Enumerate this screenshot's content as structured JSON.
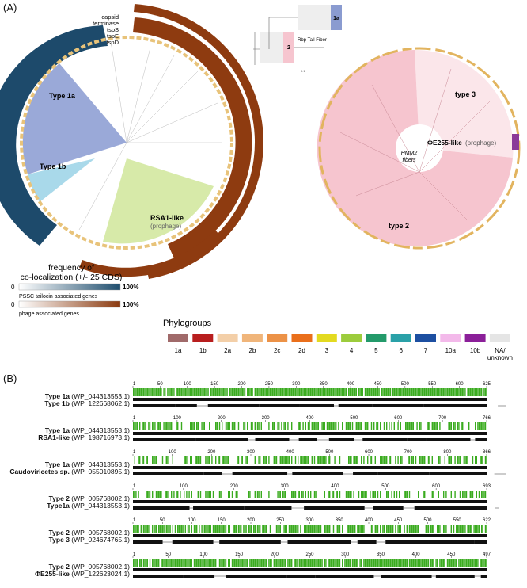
{
  "panel_a": {
    "label": "(A)",
    "ring_labels": [
      "capsid",
      "terminase",
      "tspS",
      "tspE",
      "tspD"
    ],
    "clades": {
      "type1a": "Type 1a",
      "type1b": "Type 1b",
      "rsa1": "RSA1-like",
      "rsa1_sub": "(prophage)"
    },
    "inset": {
      "label_1a": "1a",
      "label_2": "2",
      "rbp": "Rbp Tail Fiber",
      "scale": "0.1"
    },
    "right_tree": {
      "center_line1": "HMM2",
      "center_line2": "fibers",
      "type3": "type 3",
      "type2": "type 2",
      "phi_bold": "ΦE255-like",
      "phi_sub": "(prophage)"
    },
    "coloc_legend": {
      "title_line1": "frequency of",
      "title_line2": "co-localization (+/- 25 CDS)",
      "min": "0",
      "max": "100%",
      "bar1_caption": "PSSC tailocin associated genes",
      "bar2_caption": "phage associated genes",
      "bar1_color": "#1f4e6e",
      "bar2_color": "#8b3a0f"
    },
    "phylogroups": {
      "title": "Phylogroups",
      "items": [
        {
          "label": "1a",
          "color": "#a06a6a"
        },
        {
          "label": "1b",
          "color": "#b81e1e"
        },
        {
          "label": "2a",
          "color": "#f3cfa8"
        },
        {
          "label": "2b",
          "color": "#f0b57a"
        },
        {
          "label": "2c",
          "color": "#ec9247"
        },
        {
          "label": "2d",
          "color": "#ea6f1b"
        },
        {
          "label": "3",
          "color": "#e3da20"
        },
        {
          "label": "4",
          "color": "#9ccc3c"
        },
        {
          "label": "5",
          "color": "#239a6a"
        },
        {
          "label": "6",
          "color": "#2aa1a8"
        },
        {
          "label": "7",
          "color": "#1d4fa1"
        },
        {
          "label": "10a",
          "color": "#f3b9ea"
        },
        {
          "label": "10b",
          "color": "#8b1f99"
        },
        {
          "label": "NA/\nunknown",
          "color": "#e5e5e5"
        }
      ]
    }
  },
  "panel_b": {
    "label": "(B)",
    "rows": [
      {
        "a_bold": "Type 1a",
        "a_acc": "(WP_044313553.1)",
        "b_bold": "Type 1b",
        "b_acc": "(WP_122668062.1)",
        "ticks": [
          "1",
          "50",
          "100",
          "150",
          "200",
          "250",
          "300",
          "350",
          "400",
          "450",
          "500",
          "550",
          "600",
          "625"
        ]
      },
      {
        "a_bold": "Type 1a",
        "a_acc": "(WP_044313553.1)",
        "b_bold": "RSA1-like",
        "b_acc": "(WP_198716973.1)",
        "ticks": [
          "1",
          "100",
          "200",
          "300",
          "400",
          "500",
          "600",
          "700",
          "766"
        ]
      },
      {
        "a_bold": "Type 1a",
        "a_acc": "(WP_044313553.1)",
        "b_bold": "Caudoviricetes sp.",
        "b_acc": "(WP_055010895.1)",
        "ticks": [
          "1",
          "100",
          "200",
          "300",
          "400",
          "500",
          "600",
          "700",
          "800",
          "866"
        ]
      },
      {
        "a_bold": "Type 2",
        "a_acc": "(WP_005768002.1)",
        "b_bold": "Type1a",
        "b_acc": "(WP_044313553.1)",
        "ticks": [
          "1",
          "100",
          "200",
          "300",
          "400",
          "500",
          "600",
          "693"
        ]
      },
      {
        "a_bold": "Type 2",
        "a_acc": "(WP_005768002.1)",
        "b_bold": "Type 3",
        "b_acc": "(WP_024674765.1)",
        "ticks": [
          "1",
          "50",
          "100",
          "150",
          "200",
          "250",
          "300",
          "350",
          "400",
          "450",
          "500",
          "550",
          "622"
        ]
      },
      {
        "a_bold": "Type 2",
        "a_acc": "(WP_005768002.1)",
        "b_bold": "ΦE255-like",
        "b_acc": "(WP_122623024.1)",
        "ticks": [
          "1",
          "50",
          "100",
          "150",
          "200",
          "250",
          "300",
          "350",
          "400",
          "450",
          "497"
        ]
      }
    ]
  }
}
